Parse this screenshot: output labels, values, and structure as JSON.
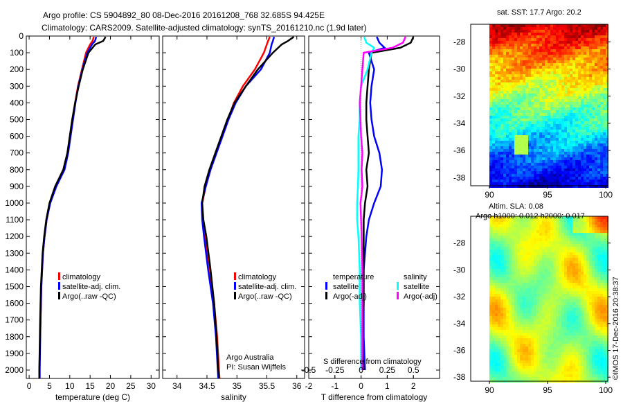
{
  "chart_data": [
    {
      "type": "line",
      "title_line1": "Argo profile: CS 5904892_80 08-Dec-2016 20161208_768 32.685S 94.425E",
      "title_line2": "Climatology: CARS2009. Satellite-adjusted climatology: synTS_20161210.nc (1.9d later)",
      "xlabel": "temperature (deg C)",
      "xlim": [
        -0.7,
        32
      ],
      "ylim": [
        0,
        2050
      ],
      "xticks": [
        "0",
        "5",
        "10",
        "15",
        "20",
        "25",
        "30"
      ],
      "xtick_values": [
        0,
        5,
        10,
        15,
        20,
        25,
        30
      ],
      "yticks": [
        "0",
        "100",
        "200",
        "300",
        "400",
        "500",
        "600",
        "700",
        "800",
        "900",
        "1000",
        "1100",
        "1200",
        "1300",
        "1400",
        "1500",
        "1600",
        "1700",
        "1800",
        "1900",
        "2000"
      ],
      "depth": [
        5,
        30,
        50,
        100,
        200,
        300,
        400,
        500,
        600,
        700,
        800,
        900,
        1000,
        1100,
        1200,
        1300,
        1500,
        1700,
        2000,
        2050
      ],
      "series": [
        {
          "name": "climatology",
          "color": "#ff0000",
          "values": [
            15.9,
            15.6,
            15.0,
            14.0,
            13.0,
            12.0,
            11.3,
            10.7,
            10.1,
            9.5,
            8.6,
            6.6,
            5.1,
            4.3,
            3.8,
            3.4,
            3.0,
            2.8,
            2.5,
            2.5
          ]
        },
        {
          "name": "satellite-adj. clim.",
          "color": "#0000ff",
          "values": [
            16.5,
            16.2,
            15.5,
            14.3,
            13.1,
            12.1,
            11.4,
            10.8,
            10.2,
            9.6,
            8.7,
            6.7,
            5.2,
            4.3,
            3.8,
            3.4,
            3.0,
            2.8,
            2.6,
            2.6
          ]
        },
        {
          "name": "Argo(..raw -QC)",
          "color": "#000000",
          "values": [
            18.8,
            18.2,
            16.3,
            14.6,
            13.2,
            12.2,
            11.3,
            10.6,
            10.0,
            9.4,
            8.4,
            6.4,
            5.0,
            4.2,
            3.7,
            3.3,
            2.9,
            2.7,
            2.5,
            2.5
          ]
        }
      ]
    },
    {
      "type": "line",
      "xlabel": "salinity",
      "xlim": [
        33.76,
        36.13
      ],
      "ylim": [
        0,
        2050
      ],
      "xticks": [
        "34",
        "34.5",
        "35",
        "35.5",
        "36"
      ],
      "xtick_values": [
        34,
        34.5,
        35,
        35.5,
        36
      ],
      "annotation_line1": "Argo Australia",
      "annotation_line2": "PI: Susan Wijffels",
      "depth": [
        5,
        30,
        50,
        100,
        200,
        300,
        400,
        500,
        600,
        700,
        800,
        900,
        1000,
        1100,
        1200,
        1400,
        1600,
        1800,
        2000,
        2050
      ],
      "series": [
        {
          "name": "climatology",
          "color": "#ff0000",
          "values": [
            35.55,
            35.52,
            35.5,
            35.45,
            35.3,
            35.1,
            34.95,
            34.85,
            34.75,
            34.65,
            34.55,
            34.48,
            34.42,
            34.43,
            34.47,
            34.55,
            34.62,
            34.67,
            34.7,
            34.71
          ]
        },
        {
          "name": "satellite-adj. clim.",
          "color": "#0000ff",
          "values": [
            35.62,
            35.6,
            35.58,
            35.55,
            35.4,
            35.15,
            34.98,
            34.86,
            34.76,
            34.66,
            34.56,
            34.48,
            34.41,
            34.42,
            34.45,
            34.52,
            34.6,
            34.65,
            34.68,
            34.69
          ]
        },
        {
          "name": "Argo(..raw -QC)",
          "color": "#000000",
          "values": [
            35.95,
            35.85,
            35.75,
            35.6,
            35.35,
            35.15,
            34.96,
            34.84,
            34.74,
            34.64,
            34.54,
            34.46,
            34.42,
            34.44,
            34.49,
            34.56,
            34.62,
            34.66,
            34.69,
            34.7
          ]
        }
      ]
    },
    {
      "type": "line",
      "xlabel": "T difference from climatology",
      "xlim": [
        -2,
        3
      ],
      "ylim": [
        0,
        2050
      ],
      "xticks": [
        "-2",
        "-1",
        "0",
        "1",
        "2"
      ],
      "xtick_values": [
        -2,
        -1,
        0,
        1,
        2
      ],
      "top_label": "S difference from climatology",
      "sticks": [
        "-0.5",
        "-0.25",
        "0",
        "0.25",
        "0.5"
      ],
      "stick_values": [
        -0.5,
        -0.25,
        0,
        0.25,
        0.5
      ],
      "legend_temperature": "temperature",
      "legend_salinity": "salinity",
      "depth": [
        5,
        40,
        70,
        100,
        200,
        300,
        400,
        500,
        600,
        700,
        800,
        900,
        1000,
        1100,
        1200,
        1400,
        1600,
        1800,
        2000
      ],
      "series": [
        {
          "name": "satellite",
          "group": "temperature",
          "color": "#0000ff",
          "values": [
            0.6,
            0.7,
            0.9,
            0.3,
            0.5,
            0.4,
            0.35,
            0.4,
            0.5,
            0.7,
            0.8,
            0.75,
            0.5,
            0.3,
            0.2,
            0.1,
            0.1,
            0.1,
            0.15
          ]
        },
        {
          "name": "Argo(-adj)",
          "group": "temperature",
          "color": "#000000",
          "values": [
            2.0,
            1.9,
            1.5,
            0.4,
            0.3,
            0.25,
            0.2,
            0.2,
            0.25,
            0.3,
            0.2,
            0.25,
            0.15,
            0.1,
            0.1,
            0.1,
            0.1,
            0.05,
            0.1
          ]
        },
        {
          "name": "satellite",
          "group": "salinity",
          "color": "#00ffff",
          "values": [
            0.12,
            0.2,
            0.5,
            0.4,
            0.25,
            0.0,
            -0.05,
            -0.05,
            -0.1,
            -0.1,
            -0.1,
            -0.12,
            -0.15,
            -0.15,
            -0.1,
            -0.05,
            -0.05,
            0.0,
            0.0
          ]
        },
        {
          "name": "Argo(-adj)",
          "group": "salinity",
          "color": "#ff00ff",
          "values": [
            1.7,
            1.6,
            1.2,
            0.1,
            0.05,
            0.0,
            -0.05,
            -0.02,
            0.0,
            0.05,
            0.02,
            0.05,
            -0.02,
            0.0,
            0.02,
            0.05,
            0.05,
            0.05,
            0.05
          ]
        }
      ]
    },
    {
      "type": "heatmap",
      "title": "sat. SST: 17.7 Argo: 20.2",
      "xticks": [
        "90",
        "95",
        "100"
      ],
      "yticks": [
        "-28",
        "-30",
        "-32",
        "-34",
        "-36",
        "-38"
      ],
      "lon_range": [
        88.3,
        100.1
      ],
      "lat_range": [
        -26.7,
        -38.6
      ]
    },
    {
      "type": "heatmap",
      "title_line1": "Altim. SLA: 0.08",
      "title_line2": "Argo h1000: 0.012 h2000: 0.017",
      "xticks": [
        "90",
        "95",
        "100"
      ],
      "yticks": [
        "-28",
        "-30",
        "-32",
        "-34",
        "-36",
        "-38"
      ],
      "lon_range": [
        88.3,
        100.1
      ],
      "lat_range": [
        -26.0,
        -38.3
      ]
    }
  ],
  "credit": "©IMOS 17-Dec-2016 20:38:37"
}
